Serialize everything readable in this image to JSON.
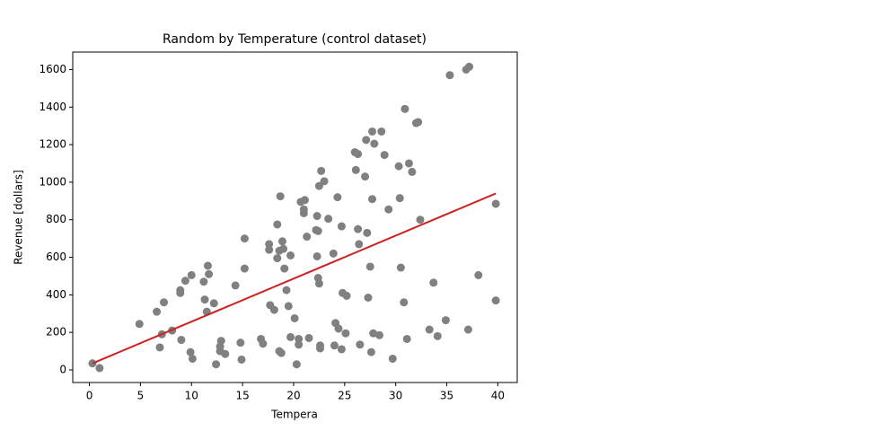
{
  "chart_data": {
    "type": "scatter",
    "title": "Random by Temperature (control dataset)",
    "x_label": "Tempera",
    "y_label": "Revenue [dollars]",
    "x": [
      0.3,
      1,
      4.9,
      6.6,
      6.9,
      7.1,
      7.3,
      8.1,
      8.9,
      8.9,
      9,
      9.4,
      9.9,
      10,
      10.1,
      11.2,
      11.3,
      11.5,
      11.6,
      11.7,
      12.2,
      12.4,
      12.8,
      12.8,
      12.9,
      13.3,
      14.3,
      14.8,
      14.9,
      15.2,
      15.2,
      16.8,
      17,
      17.6,
      17.6,
      17.7,
      18.1,
      18.4,
      18.4,
      18.6,
      18.6,
      18.7,
      18.8,
      18.9,
      19,
      19.1,
      19.3,
      19.5,
      19.7,
      19.7,
      20.1,
      20.3,
      20.5,
      20.5,
      20.7,
      21,
      21,
      21.1,
      21.3,
      21.5,
      22.2,
      22.3,
      22.3,
      22.4,
      22.4,
      22.5,
      22.5,
      22.6,
      22.6,
      22.7,
      23,
      23.4,
      23.9,
      24,
      24.1,
      24.3,
      24.4,
      24.7,
      24.7,
      24.8,
      25.1,
      25.2,
      26,
      26.1,
      26.3,
      26.3,
      26.4,
      26.5,
      27,
      27.1,
      27.2,
      27.3,
      27.5,
      27.6,
      27.7,
      27.7,
      27.8,
      27.9,
      28.4,
      28.6,
      28.9,
      29.3,
      29.7,
      30.3,
      30.4,
      30.5,
      30.8,
      30.9,
      31.1,
      31.3,
      31.6,
      32,
      32.2,
      32.4,
      33.3,
      33.7,
      34.1,
      34.9,
      35.3,
      36.9,
      37.1,
      37.2,
      38.1,
      39.8,
      39.8
    ],
    "values": [
      35,
      10,
      245,
      310,
      120,
      190,
      360,
      210,
      410,
      425,
      160,
      475,
      95,
      505,
      60,
      470,
      375,
      310,
      555,
      510,
      355,
      30,
      100,
      125,
      155,
      85,
      450,
      145,
      55,
      700,
      540,
      165,
      140,
      670,
      640,
      345,
      320,
      775,
      595,
      100,
      635,
      925,
      90,
      685,
      645,
      540,
      425,
      340,
      175,
      610,
      275,
      30,
      165,
      135,
      895,
      855,
      835,
      905,
      710,
      170,
      745,
      820,
      605,
      740,
      490,
      980,
      460,
      130,
      115,
      1060,
      1005,
      805,
      620,
      130,
      250,
      920,
      220,
      110,
      765,
      410,
      195,
      395,
      1160,
      1065,
      1150,
      750,
      670,
      135,
      1030,
      1225,
      730,
      385,
      550,
      95,
      1270,
      910,
      195,
      1205,
      185,
      1270,
      1145,
      855,
      60,
      1085,
      915,
      545,
      360,
      1390,
      165,
      1100,
      1055,
      1315,
      1320,
      800,
      215,
      465,
      180,
      265,
      1570,
      1600,
      215,
      1615,
      505,
      885,
      370
    ],
    "color": "#808080",
    "trend": {
      "x": [
        0.3,
        39.8
      ],
      "values": [
        35,
        940
      ],
      "color": "#cc2222"
    },
    "xlim": [
      -1.63,
      41.9
    ],
    "ylim": [
      -67,
      1693
    ],
    "xticks": [
      0,
      5,
      10,
      15,
      20,
      25,
      30,
      35,
      40
    ],
    "yticks": [
      0,
      200,
      400,
      600,
      800,
      1000,
      1200,
      1400,
      1600
    ],
    "grid": false
  }
}
